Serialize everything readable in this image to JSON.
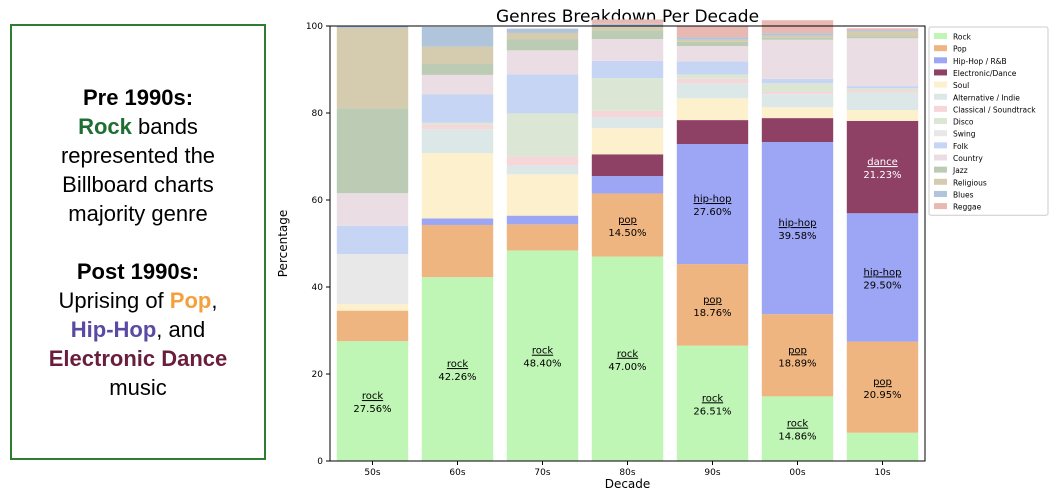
{
  "panel": {
    "pre_heading": "Pre 1990s:",
    "pre_rock": "Rock",
    "pre_line1": "bands",
    "pre_line2": "represented the",
    "pre_line3": "Billboard charts",
    "pre_line4": "majority genre",
    "post_heading": "Post 1990s:",
    "post_line1": "Uprising of",
    "post_pop": "Pop",
    "post_comma": ",",
    "post_hip": "Hip-Hop",
    "post_and": ", and",
    "post_edm": "Electronic Dance",
    "post_music": "music"
  },
  "chart_data": {
    "type": "bar",
    "stacked": true,
    "title": "Genres Breakdown Per Decade",
    "xlabel": "Decade",
    "ylabel": "Percentage",
    "ylim": [
      0,
      100
    ],
    "yticks": [
      0,
      20,
      40,
      60,
      80,
      100
    ],
    "categories": [
      "50s",
      "60s",
      "70s",
      "80s",
      "90s",
      "00s",
      "10s"
    ],
    "legend_position": "right",
    "series": [
      {
        "name": "Rock",
        "color": "#bff5b5",
        "values": [
          27.56,
          42.26,
          48.4,
          47.0,
          26.51,
          14.86,
          6.5
        ]
      },
      {
        "name": "Pop",
        "color": "#efb580",
        "values": [
          7.0,
          12.0,
          6.0,
          14.5,
          18.76,
          18.89,
          20.95
        ]
      },
      {
        "name": "Hip-Hop / R&B",
        "color": "#9da6f5",
        "values": [
          0,
          1.5,
          2.0,
          4.0,
          27.6,
          39.58,
          29.5
        ]
      },
      {
        "name": "Electronic/Dance",
        "color": "#8e4165",
        "values": [
          0,
          0,
          0,
          5.0,
          5.5,
          5.5,
          21.23
        ]
      },
      {
        "name": "Soul",
        "color": "#fdf0cc",
        "values": [
          1.5,
          15.0,
          9.5,
          6.0,
          5.0,
          2.5,
          2.5
        ]
      },
      {
        "name": "Alternative / Indie",
        "color": "#dce8e8",
        "values": [
          0,
          5.5,
          2.0,
          2.5,
          3.5,
          3.0,
          4.0
        ]
      },
      {
        "name": "Classical / Soundtrack",
        "color": "#f6d6d8",
        "values": [
          0,
          1.0,
          2.0,
          1.5,
          1.0,
          0.5,
          0.5
        ]
      },
      {
        "name": "Disco",
        "color": "#dbe7d4",
        "values": [
          0,
          0.5,
          10.0,
          7.5,
          1.0,
          2.0,
          0.5
        ]
      },
      {
        "name": "Swing",
        "color": "#e8e8e8",
        "values": [
          11.5,
          0,
          0,
          0,
          0,
          0,
          0
        ]
      },
      {
        "name": "Folk",
        "color": "#c7d5f5",
        "values": [
          6.5,
          6.5,
          9.0,
          4.0,
          3.0,
          1.0,
          0.5
        ]
      },
      {
        "name": "Country",
        "color": "#ebdde4",
        "values": [
          7.5,
          4.5,
          5.5,
          5.0,
          3.5,
          9.0,
          11.0
        ]
      },
      {
        "name": "Jazz",
        "color": "#bccbb4",
        "values": [
          19.5,
          2.5,
          2.5,
          2.0,
          1.0,
          0.5,
          0.5
        ]
      },
      {
        "name": "Religious",
        "color": "#d5cbaf",
        "values": [
          18.5,
          4.0,
          1.5,
          1.0,
          0.5,
          0.5,
          1.0
        ]
      },
      {
        "name": "Blues",
        "color": "#b0c4db",
        "values": [
          0.5,
          4.5,
          1.0,
          0.5,
          0.5,
          0.5,
          0.3
        ]
      },
      {
        "name": "Reggae",
        "color": "#e8b8b2",
        "values": [
          0,
          0,
          0,
          1.0,
          2.5,
          3.0,
          0.5
        ]
      }
    ],
    "annotations": [
      {
        "category": "50s",
        "series": "Rock",
        "label": "rock",
        "value_text": "27.56%"
      },
      {
        "category": "60s",
        "series": "Rock",
        "label": "rock",
        "value_text": "42.26%"
      },
      {
        "category": "70s",
        "series": "Rock",
        "label": "rock",
        "value_text": "48.40%"
      },
      {
        "category": "80s",
        "series": "Rock",
        "label": "rock",
        "value_text": "47.00%"
      },
      {
        "category": "80s",
        "series": "Pop",
        "label": "pop",
        "value_text": "14.50%"
      },
      {
        "category": "90s",
        "series": "Rock",
        "label": "rock",
        "value_text": "26.51%"
      },
      {
        "category": "90s",
        "series": "Pop",
        "label": "pop",
        "value_text": "18.76%"
      },
      {
        "category": "90s",
        "series": "Hip-Hop / R&B",
        "label": "hip-hop",
        "value_text": "27.60%"
      },
      {
        "category": "00s",
        "series": "Rock",
        "label": "rock",
        "value_text": "14.86%"
      },
      {
        "category": "00s",
        "series": "Pop",
        "label": "pop",
        "value_text": "18.89%"
      },
      {
        "category": "00s",
        "series": "Hip-Hop / R&B",
        "label": "hip-hop",
        "value_text": "39.58%"
      },
      {
        "category": "10s",
        "series": "Pop",
        "label": "pop",
        "value_text": "20.95%"
      },
      {
        "category": "10s",
        "series": "Hip-Hop / R&B",
        "label": "hip-hop",
        "value_text": "29.50%"
      },
      {
        "category": "10s",
        "series": "Electronic/Dance",
        "label": "dance",
        "value_text": "21.23%"
      }
    ]
  }
}
